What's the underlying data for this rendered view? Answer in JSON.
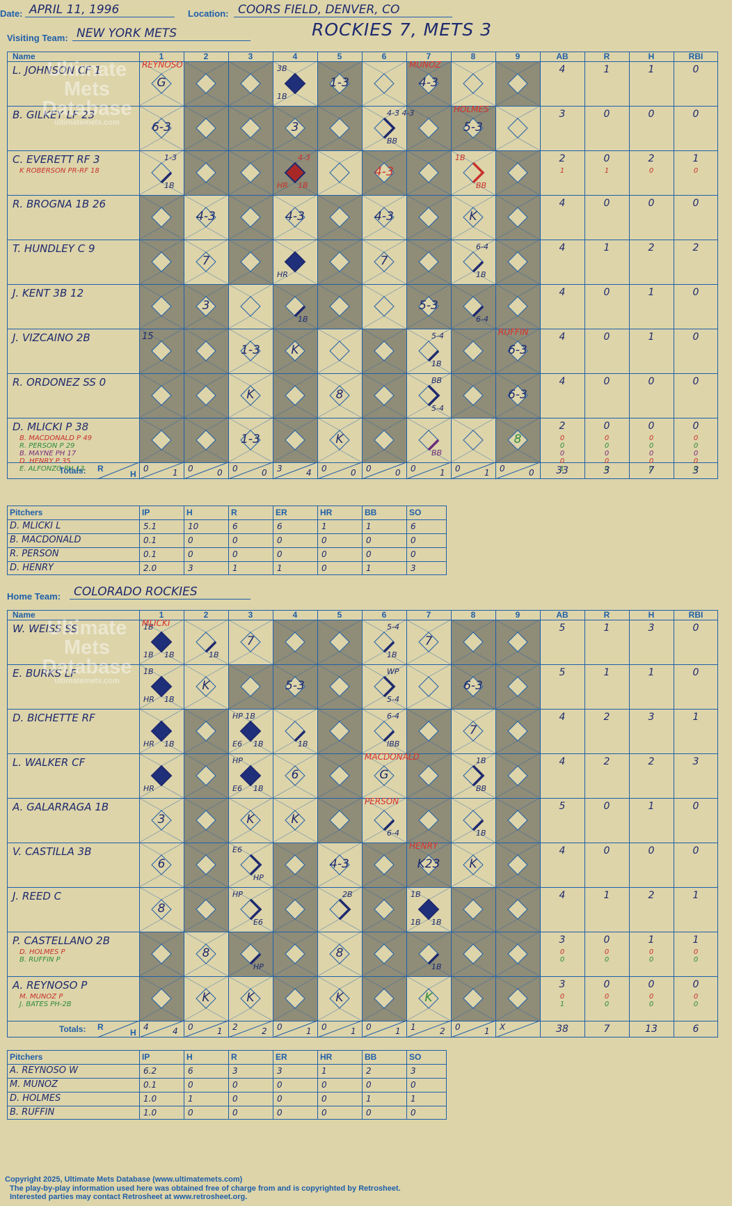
{
  "header": {
    "date_label": "Date:",
    "date": "APRIL 11, 1996",
    "location_label": "Location:",
    "location": "COORS FIELD, DENVER, CO",
    "visiting_label": "Visiting Team:",
    "visiting_team": "NEW YORK METS",
    "home_label": "Home Team:",
    "home_team": "COLORADO ROCKIES",
    "title": "ROCKIES 7, METS 3"
  },
  "watermark": {
    "line1": "Ultimate",
    "line2": "Mets",
    "line3": "Database",
    "line4": "ultimatemets.com"
  },
  "columns": {
    "name": "Name",
    "innings": [
      "1",
      "2",
      "3",
      "4",
      "5",
      "6",
      "7",
      "8",
      "9"
    ],
    "stats": [
      "AB",
      "R",
      "H",
      "RBI"
    ],
    "totals_label": "Totals:",
    "r": "R",
    "h": "H"
  },
  "pitch_columns": {
    "name": "Pitchers",
    "stats": [
      "IP",
      "H",
      "R",
      "ER",
      "HR",
      "BB",
      "SO"
    ]
  },
  "visitors": {
    "players": [
      {
        "name": "L. JOHNSON CF  1",
        "stats": [
          "4",
          "1",
          "1",
          "0"
        ],
        "subs": []
      },
      {
        "name": "B. GILKEY LF  23",
        "stats": [
          "3",
          "0",
          "0",
          "0"
        ],
        "subs": []
      },
      {
        "name": "C. EVERETT RF  3",
        "stats": [
          "2",
          "0",
          "2",
          "1"
        ],
        "subs": [
          {
            "name": "K ROBERSON PR-RF  18",
            "color": "#c8312b",
            "stats": [
              "1",
              "1",
              "0",
              "0"
            ]
          }
        ]
      },
      {
        "name": "R. BROGNA 1B  26",
        "stats": [
          "4",
          "0",
          "0",
          "0"
        ],
        "subs": []
      },
      {
        "name": "T. HUNDLEY C  9",
        "stats": [
          "4",
          "1",
          "2",
          "2"
        ],
        "subs": []
      },
      {
        "name": "J. KENT 3B  12",
        "stats": [
          "4",
          "0",
          "1",
          "0"
        ],
        "subs": []
      },
      {
        "name": "J. VIZCAINO 2B",
        "stats": [
          "4",
          "0",
          "1",
          "0"
        ],
        "subs": []
      },
      {
        "name": "R. ORDONEZ SS  0",
        "stats": [
          "4",
          "0",
          "0",
          "0"
        ],
        "subs": []
      },
      {
        "name": "D. MLICKI P  38",
        "stats": [
          "2",
          "0",
          "0",
          "0"
        ],
        "subs": [
          {
            "name": "B. MACDONALD P  49",
            "color": "#c8312b",
            "stats": [
              "0",
              "0",
              "0",
              "0"
            ]
          },
          {
            "name": "R. PERSON P  29",
            "color": "#2e8b3a",
            "stats": [
              "0",
              "0",
              "0",
              "0"
            ]
          },
          {
            "name": "B. MAYNE PH  17",
            "color": "#7a2a7a",
            "stats": [
              "0",
              "0",
              "0",
              "0"
            ]
          },
          {
            "name": "D. HENRY P  35",
            "color": "#c8312b",
            "stats": [
              "0",
              "0",
              "0",
              "0"
            ]
          },
          {
            "name": "E. ALFONZO PH  13",
            "color": "#2e8b3a",
            "stats": [
              "1",
              "0",
              "0",
              "0"
            ]
          }
        ]
      }
    ],
    "grey": [
      [
        1,
        2,
        4,
        6,
        8
      ],
      [
        1,
        2,
        3,
        4,
        6,
        7
      ],
      [
        1,
        2,
        3,
        5,
        6,
        8
      ],
      [
        0,
        2,
        4,
        6,
        8
      ],
      [
        0,
        2,
        4,
        6,
        8
      ],
      [
        0,
        1,
        3,
        4,
        6,
        7,
        8
      ],
      [
        0,
        1,
        3,
        5,
        7,
        8
      ],
      [
        0,
        1,
        3,
        5,
        7,
        8
      ],
      [
        0,
        1,
        3,
        5,
        8
      ]
    ],
    "marks": [
      {
        "r": 0,
        "i": 0,
        "t": "G"
      },
      {
        "r": 0,
        "i": 4,
        "t": "1-3"
      },
      {
        "r": 0,
        "i": 6,
        "t": "4-3"
      },
      {
        "r": 1,
        "i": 0,
        "t": "6-3"
      },
      {
        "r": 1,
        "i": 3,
        "t": "3"
      },
      {
        "r": 1,
        "i": 7,
        "t": "5-3"
      },
      {
        "r": 2,
        "i": 5,
        "t": "4-3",
        "c": "#c8312b"
      },
      {
        "r": 3,
        "i": 1,
        "t": "4-3"
      },
      {
        "r": 3,
        "i": 3,
        "t": "4-3"
      },
      {
        "r": 3,
        "i": 5,
        "t": "4-3"
      },
      {
        "r": 3,
        "i": 7,
        "t": "K"
      },
      {
        "r": 4,
        "i": 1,
        "t": "7"
      },
      {
        "r": 4,
        "i": 5,
        "t": "7"
      },
      {
        "r": 5,
        "i": 1,
        "t": "3"
      },
      {
        "r": 5,
        "i": 6,
        "t": "5-3"
      },
      {
        "r": 6,
        "i": 2,
        "t": "1-3"
      },
      {
        "r": 6,
        "i": 3,
        "t": "K"
      },
      {
        "r": 6,
        "i": 8,
        "t": "6-3"
      },
      {
        "r": 7,
        "i": 2,
        "t": "K"
      },
      {
        "r": 7,
        "i": 4,
        "t": "8"
      },
      {
        "r": 7,
        "i": 8,
        "t": "6-3"
      },
      {
        "r": 8,
        "i": 2,
        "t": "1-3"
      },
      {
        "r": 8,
        "i": 4,
        "t": "K"
      },
      {
        "r": 8,
        "i": 8,
        "t": "8",
        "c": "#2e8b3a"
      }
    ],
    "hits": [
      {
        "r": 0,
        "i": 3,
        "run": true,
        "bl": "1B",
        "tl": "3B"
      },
      {
        "r": 1,
        "i": 5,
        "seg": 2,
        "br": "BB",
        "tr": "4-3 4-3"
      },
      {
        "r": 2,
        "i": 0,
        "seg": 1,
        "br": "1B",
        "tr": "1-3"
      },
      {
        "r": 2,
        "i": 3,
        "run": true,
        "red": true,
        "bl": "HR",
        "br": "1B",
        "tr": "4-3"
      },
      {
        "r": 2,
        "i": 7,
        "seg": 2,
        "red": true,
        "br": "BB",
        "tl": "1B"
      },
      {
        "r": 4,
        "i": 3,
        "run": true,
        "bl": "HR"
      },
      {
        "r": 4,
        "i": 7,
        "seg": 1,
        "br": "1B",
        "tr": "6-4"
      },
      {
        "r": 5,
        "i": 3,
        "seg": 1,
        "br": "1B"
      },
      {
        "r": 5,
        "i": 7,
        "seg": 1,
        "br": "6-4"
      },
      {
        "r": 6,
        "i": 6,
        "seg": 1,
        "br": "1B",
        "tr": "5-4"
      },
      {
        "r": 7,
        "i": 6,
        "seg": 2,
        "br": "5-4",
        "tr": "BB"
      },
      {
        "r": 8,
        "i": 6,
        "seg": 1,
        "br": "BB",
        "purple": true
      }
    ],
    "notes": [
      {
        "r": 0,
        "i": 0,
        "t": "REYNOSO"
      },
      {
        "r": 0,
        "i": 6,
        "t": "MUNOZ"
      },
      {
        "r": 1,
        "i": 7,
        "t": "HOLMES"
      },
      {
        "r": 6,
        "i": 8,
        "t": "RUFFIN"
      },
      {
        "r": 6,
        "i": 0,
        "t": "15",
        "plain": true
      }
    ],
    "totals": [
      [
        "0",
        "1"
      ],
      [
        "0",
        "0"
      ],
      [
        "0",
        "0"
      ],
      [
        "3",
        "4"
      ],
      [
        "0",
        "0"
      ],
      [
        "0",
        "0"
      ],
      [
        "0",
        "1"
      ],
      [
        "0",
        "1"
      ],
      [
        "0",
        "0"
      ]
    ],
    "totals_stats": [
      "33",
      "3",
      "7",
      "3"
    ],
    "pitchers": [
      {
        "name": "D. MLICKI  L",
        "stats": [
          "5.1",
          "10",
          "6",
          "6",
          "1",
          "1",
          "6"
        ]
      },
      {
        "name": "B. MACDONALD",
        "stats": [
          "0.1",
          "0",
          "0",
          "0",
          "0",
          "0",
          "0"
        ]
      },
      {
        "name": "R. PERSON",
        "stats": [
          "0.1",
          "0",
          "0",
          "0",
          "0",
          "0",
          "0"
        ]
      },
      {
        "name": "D. HENRY",
        "stats": [
          "2.0",
          "3",
          "1",
          "1",
          "0",
          "1",
          "3"
        ]
      }
    ]
  },
  "home": {
    "players": [
      {
        "name": "W. WEISS SS",
        "stats": [
          "5",
          "1",
          "3",
          "0"
        ],
        "subs": []
      },
      {
        "name": "E. BURKS LF",
        "stats": [
          "5",
          "1",
          "1",
          "0"
        ],
        "subs": []
      },
      {
        "name": "D. BICHETTE RF",
        "stats": [
          "4",
          "2",
          "3",
          "1"
        ],
        "subs": []
      },
      {
        "name": "L. WALKER CF",
        "stats": [
          "4",
          "2",
          "2",
          "3"
        ],
        "subs": []
      },
      {
        "name": "A. GALARRAGA 1B",
        "stats": [
          "5",
          "0",
          "1",
          "0"
        ],
        "subs": []
      },
      {
        "name": "V. CASTILLA 3B",
        "stats": [
          "4",
          "0",
          "0",
          "0"
        ],
        "subs": []
      },
      {
        "name": "J. REED C",
        "stats": [
          "4",
          "1",
          "2",
          "1"
        ],
        "subs": []
      },
      {
        "name": "P. CASTELLANO 2B",
        "stats": [
          "3",
          "0",
          "1",
          "1"
        ],
        "subs": [
          {
            "name": "D. HOLMES P",
            "color": "#c8312b",
            "stats": [
              "0",
              "0",
              "0",
              "0"
            ]
          },
          {
            "name": "B. RUFFIN P",
            "color": "#2e8b3a",
            "stats": [
              "0",
              "0",
              "0",
              "0"
            ]
          }
        ]
      },
      {
        "name": "A. REYNOSO P",
        "stats": [
          "3",
          "0",
          "0",
          "0"
        ],
        "subs": [
          {
            "name": "M. MUNOZ P",
            "color": "#c8312b",
            "stats": [
              "0",
              "0",
              "0",
              "0"
            ]
          },
          {
            "name": "J. BATES PH-2B",
            "color": "#2e8b3a",
            "stats": [
              "1",
              "0",
              "0",
              "0"
            ]
          }
        ]
      }
    ],
    "grey": [
      [
        3,
        4,
        7,
        8
      ],
      [
        2,
        3,
        4,
        7,
        8
      ],
      [
        1,
        4,
        6,
        8
      ],
      [
        1,
        4,
        6,
        8
      ],
      [
        1,
        4,
        6,
        8
      ],
      [
        1,
        3,
        5,
        6,
        8
      ],
      [
        1,
        3,
        5,
        7,
        8
      ],
      [
        0,
        2,
        3,
        5,
        6,
        7,
        8
      ],
      [
        0,
        3,
        5,
        7,
        8
      ]
    ],
    "marks": [
      {
        "r": 0,
        "i": 2,
        "t": "7"
      },
      {
        "r": 0,
        "i": 6,
        "t": "7"
      },
      {
        "r": 1,
        "i": 1,
        "t": "K"
      },
      {
        "r": 1,
        "i": 3,
        "t": "5-3"
      },
      {
        "r": 1,
        "i": 7,
        "t": "6-3"
      },
      {
        "r": 2,
        "i": 7,
        "t": "7"
      },
      {
        "r": 3,
        "i": 3,
        "t": "6"
      },
      {
        "r": 3,
        "i": 5,
        "t": "G"
      },
      {
        "r": 4,
        "i": 0,
        "t": "3"
      },
      {
        "r": 4,
        "i": 2,
        "t": "K"
      },
      {
        "r": 4,
        "i": 3,
        "t": "K"
      },
      {
        "r": 5,
        "i": 0,
        "t": "6"
      },
      {
        "r": 5,
        "i": 4,
        "t": "4-3"
      },
      {
        "r": 5,
        "i": 6,
        "t": "K23"
      },
      {
        "r": 5,
        "i": 7,
        "t": "K"
      },
      {
        "r": 6,
        "i": 0,
        "t": "8"
      },
      {
        "r": 7,
        "i": 1,
        "t": "8"
      },
      {
        "r": 7,
        "i": 4,
        "t": "8"
      },
      {
        "r": 8,
        "i": 1,
        "t": "K"
      },
      {
        "r": 8,
        "i": 2,
        "t": "K"
      },
      {
        "r": 8,
        "i": 4,
        "t": "K"
      },
      {
        "r": 8,
        "i": 6,
        "t": "K",
        "c": "#2e8b3a"
      }
    ],
    "hits": [
      {
        "r": 0,
        "i": 0,
        "run": true,
        "bl": "1B",
        "br": "1B",
        "tl": "1B"
      },
      {
        "r": 0,
        "i": 1,
        "seg": 1,
        "br": "1B"
      },
      {
        "r": 0,
        "i": 5,
        "seg": 1,
        "br": "1B",
        "tr": "5-4"
      },
      {
        "r": 1,
        "i": 0,
        "run": true,
        "bl": "HR",
        "br": "1B",
        "tl": "1B"
      },
      {
        "r": 1,
        "i": 5,
        "seg": 2,
        "br": "5-4",
        "tr": "WP"
      },
      {
        "r": 2,
        "i": 0,
        "run": true,
        "bl": "HR",
        "br": "1B"
      },
      {
        "r": 2,
        "i": 2,
        "run": true,
        "bl": "E6",
        "br": "1B",
        "tl": "HP 1B"
      },
      {
        "r": 2,
        "i": 3,
        "seg": 1,
        "br": "1B"
      },
      {
        "r": 2,
        "i": 5,
        "seg": 1,
        "br": "IBB",
        "tr": "6-4"
      },
      {
        "r": 3,
        "i": 0,
        "run": true,
        "bl": "HR"
      },
      {
        "r": 3,
        "i": 2,
        "run": true,
        "bl": "E6",
        "br": "1B",
        "tl": "HP"
      },
      {
        "r": 3,
        "i": 7,
        "seg": 2,
        "br": "BB",
        "tr": "1B"
      },
      {
        "r": 4,
        "i": 5,
        "seg": 1,
        "br": "6-4"
      },
      {
        "r": 4,
        "i": 7,
        "seg": 1,
        "br": "1B"
      },
      {
        "r": 5,
        "i": 2,
        "seg": 2,
        "br": "HP",
        "tl": "E6"
      },
      {
        "r": 6,
        "i": 2,
        "seg": 2,
        "br": "E6",
        "tl": "HP"
      },
      {
        "r": 6,
        "i": 4,
        "seg": 2,
        "tr": "2B"
      },
      {
        "r": 6,
        "i": 6,
        "run": true,
        "bl": "1B",
        "br": "1B",
        "tl": "1B"
      },
      {
        "r": 7,
        "i": 2,
        "seg": 1,
        "br": "HP"
      },
      {
        "r": 7,
        "i": 6,
        "seg": 1,
        "br": "1B"
      }
    ],
    "notes": [
      {
        "r": 0,
        "i": 0,
        "t": "MLICKI"
      },
      {
        "r": 3,
        "i": 5,
        "t": "MACDONALD"
      },
      {
        "r": 4,
        "i": 5,
        "t": "PERSON"
      },
      {
        "r": 5,
        "i": 6,
        "t": "HENRY"
      }
    ],
    "totals": [
      [
        "4",
        "4"
      ],
      [
        "0",
        "1"
      ],
      [
        "2",
        "2"
      ],
      [
        "0",
        "1"
      ],
      [
        "0",
        "1"
      ],
      [
        "0",
        "1"
      ],
      [
        "1",
        "2"
      ],
      [
        "0",
        "1"
      ],
      [
        "X",
        ""
      ]
    ],
    "totals_stats": [
      "38",
      "7",
      "13",
      "6"
    ],
    "pitchers": [
      {
        "name": "A. REYNOSO  W",
        "stats": [
          "6.2",
          "6",
          "3",
          "3",
          "1",
          "2",
          "3"
        ]
      },
      {
        "name": "M. MUNOZ",
        "stats": [
          "0.1",
          "0",
          "0",
          "0",
          "0",
          "0",
          "0"
        ]
      },
      {
        "name": "D. HOLMES",
        "stats": [
          "1.0",
          "1",
          "0",
          "0",
          "0",
          "1",
          "1"
        ]
      },
      {
        "name": "B. RUFFIN",
        "stats": [
          "1.0",
          "0",
          "0",
          "0",
          "0",
          "0",
          "0"
        ]
      }
    ]
  },
  "footer": {
    "line1": "Copyright 2025, Ultimate Mets Database (www.ultimatemets.com)",
    "line2": "The play-by-play information used here was obtained free of charge from and is copyrighted by Retrosheet.",
    "line3": "Interested parties may contact Retrosheet at www.retrosheet.org."
  }
}
